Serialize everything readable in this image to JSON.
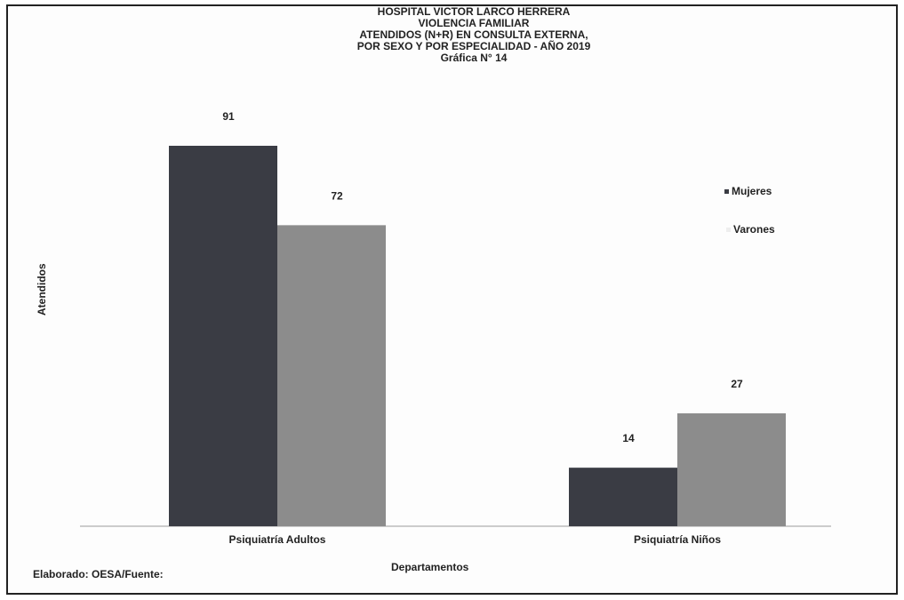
{
  "chart_data": {
    "type": "bar",
    "title_lines": [
      "HOSPITAL VICTOR LARCO HERRERA",
      "VIOLENCIA FAMILIAR",
      "ATENDIDOS (N+R) EN CONSULTA EXTERNA,",
      "POR SEXO Y POR ESPECIALIDAD - AÑO 2019",
      "Gráfica N° 14"
    ],
    "xlabel": "Departamentos",
    "ylabel": "Atendidos",
    "categories": [
      "Psiquiatría Adultos",
      "Psiquiatría Niños"
    ],
    "series": [
      {
        "name": "Mujeres",
        "values": [
          91,
          14
        ],
        "color": "#3a3c44"
      },
      {
        "name": "Varones",
        "values": [
          72,
          27
        ],
        "color": "#8c8c8c"
      }
    ],
    "ylim": [
      0,
      100
    ],
    "grid": false,
    "legend_position": "right"
  },
  "footer": {
    "credit": "Elaborado: OESA/Fuente:"
  }
}
